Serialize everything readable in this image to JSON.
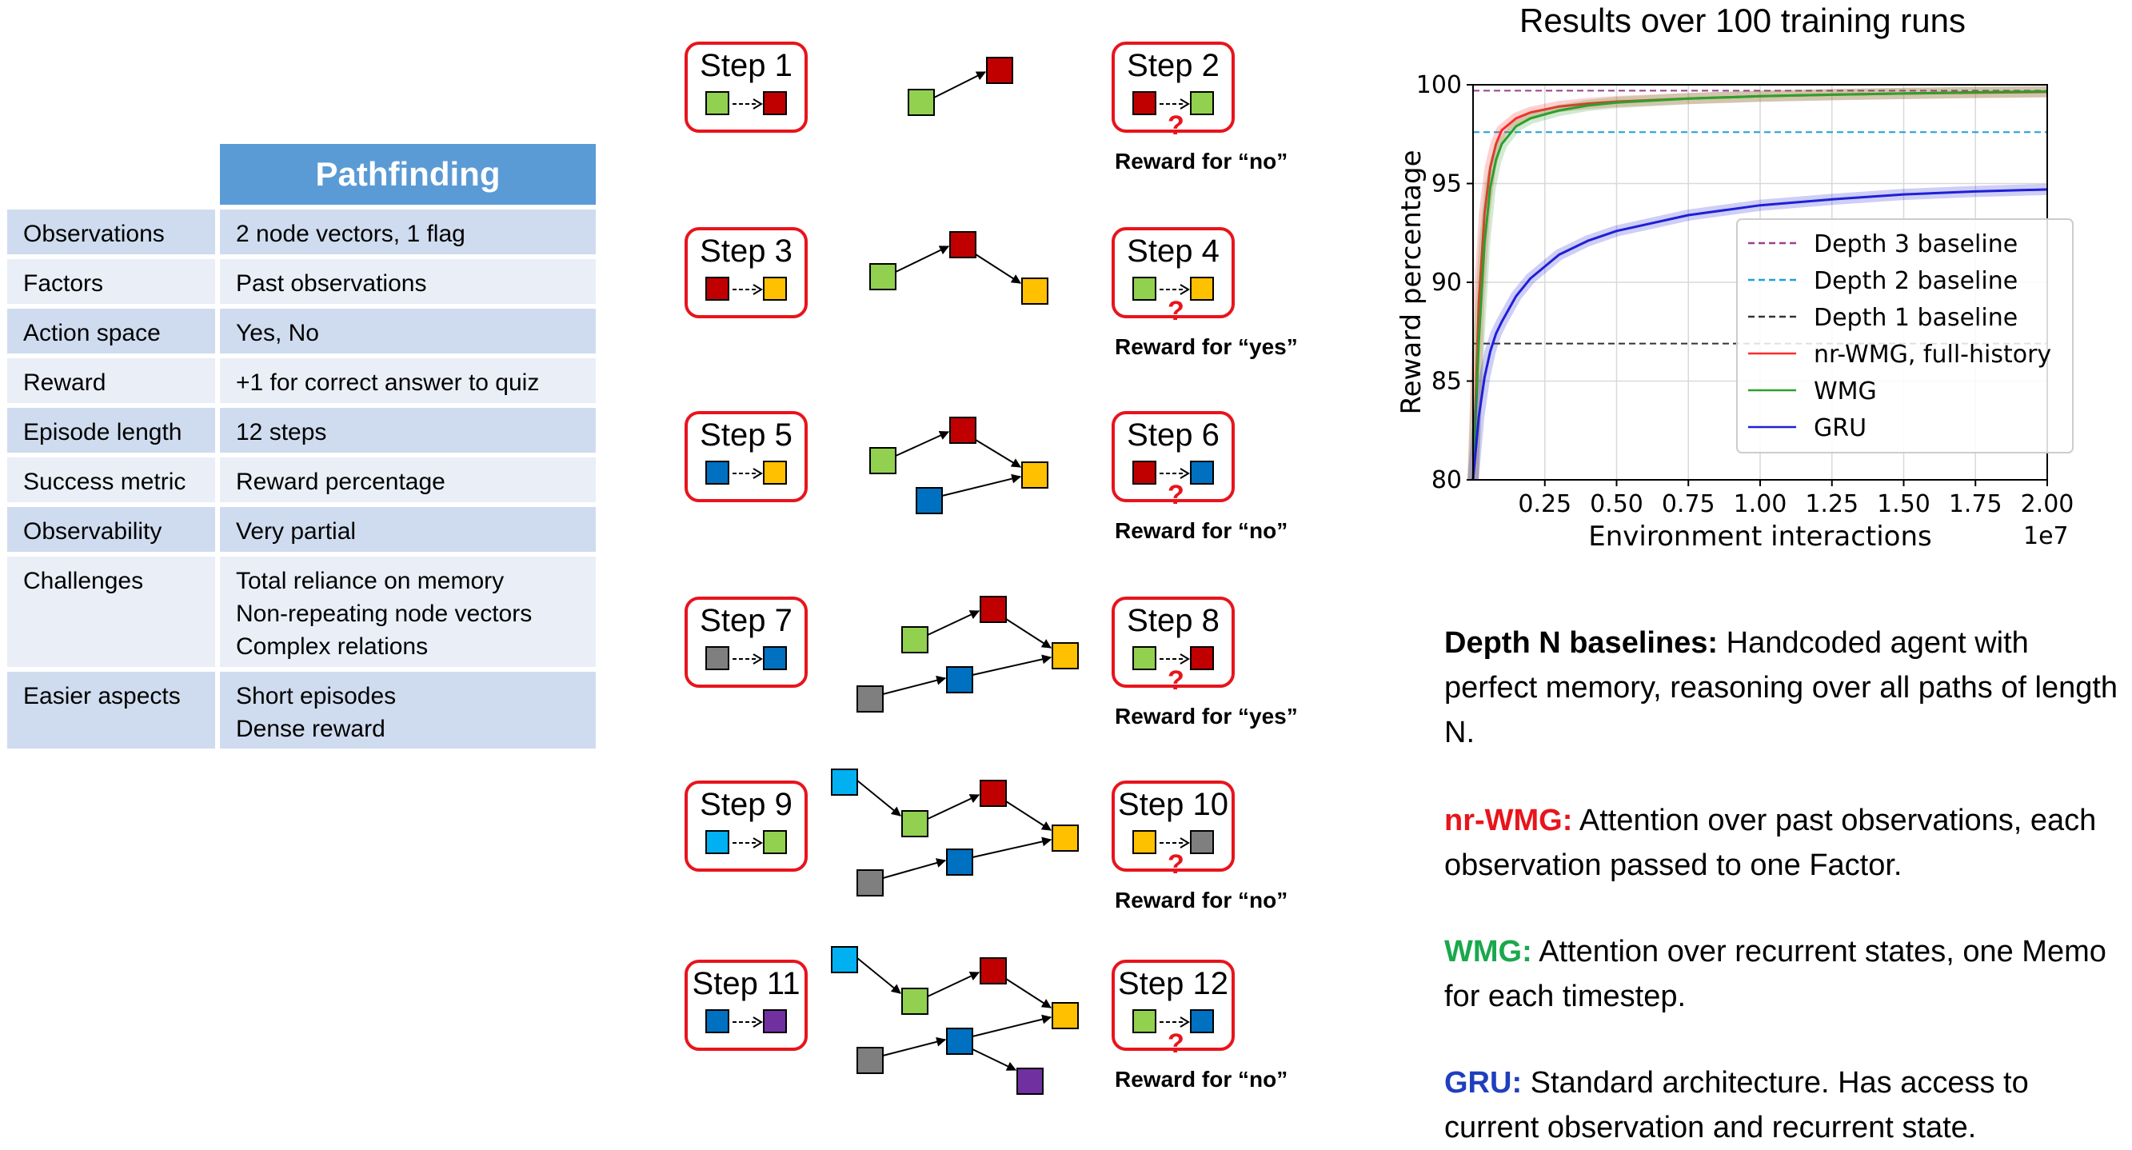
{
  "table": {
    "title": "Pathfinding",
    "rows": [
      {
        "key": "Observations",
        "value": "2 node vectors, 1 flag"
      },
      {
        "key": "Factors",
        "value": "Past observations"
      },
      {
        "key": "Action space",
        "value": "Yes, No"
      },
      {
        "key": "Reward",
        "value": "+1 for correct answer to quiz"
      },
      {
        "key": "Episode length",
        "value": "12 steps"
      },
      {
        "key": "Success metric",
        "value": "Reward percentage"
      },
      {
        "key": "Observability",
        "value": "Very partial"
      },
      {
        "key": "Challenges",
        "value": "Total reliance on memory\nNon-repeating node vectors\nComplex relations"
      },
      {
        "key": "Easier aspects",
        "value": "Short episodes\nDense reward"
      }
    ]
  },
  "colors": {
    "green": "#92d050",
    "red": "#c00000",
    "orange": "#ffc000",
    "blue": "#0070c0",
    "gray": "#7f7f7f",
    "cyan": "#00b0f0",
    "purple": "#7030a0",
    "step_border": "#e8141c"
  },
  "steps": [
    {
      "label": "Step 1",
      "from": "green",
      "to": "red"
    },
    {
      "label": "Step 2",
      "from": "red",
      "to": "green",
      "quiz": true,
      "reward": "Reward for “no”"
    },
    {
      "label": "Step 3",
      "from": "red",
      "to": "orange"
    },
    {
      "label": "Step 4",
      "from": "green",
      "to": "orange",
      "quiz": true,
      "reward": "Reward for “yes”"
    },
    {
      "label": "Step 5",
      "from": "blue",
      "to": "orange"
    },
    {
      "label": "Step 6",
      "from": "red",
      "to": "blue",
      "quiz": true,
      "reward": "Reward for “no”"
    },
    {
      "label": "Step 7",
      "from": "gray",
      "to": "blue"
    },
    {
      "label": "Step 8",
      "from": "green",
      "to": "red",
      "quiz": true,
      "reward": "Reward for “yes”"
    },
    {
      "label": "Step 9",
      "from": "cyan",
      "to": "green"
    },
    {
      "label": "Step 10",
      "from": "orange",
      "to": "gray",
      "quiz": true,
      "reward": "Reward for “no”"
    },
    {
      "label": "Step 11",
      "from": "blue",
      "to": "purple"
    },
    {
      "label": "Step 12",
      "from": "green",
      "to": "blue",
      "quiz": true,
      "reward": "Reward for “no”"
    }
  ],
  "chart_data": {
    "type": "line",
    "title": "Results over 100 training runs",
    "xlabel": "Environment interactions",
    "x_multiplier": "1e7",
    "ylabel": "Reward percentage",
    "xlim": [
      0,
      2.0
    ],
    "ylim": [
      80,
      100
    ],
    "xticks": [
      "0.25",
      "0.50",
      "0.75",
      "1.00",
      "1.25",
      "1.50",
      "1.75",
      "2.00"
    ],
    "yticks": [
      "80",
      "85",
      "90",
      "95",
      "100"
    ],
    "grid": true,
    "legend_position": "center-right",
    "baselines": [
      {
        "name": "Depth 3 baseline",
        "y": 99.7,
        "color": "#9c3f8e"
      },
      {
        "name": "Depth 2 baseline",
        "y": 97.6,
        "color": "#1f9fd6"
      },
      {
        "name": "Depth 1 baseline",
        "y": 86.9,
        "color": "#333333"
      }
    ],
    "series": [
      {
        "name": "nr-WMG, full-history",
        "color": "#ff2b2b",
        "x": [
          0.0,
          0.02,
          0.04,
          0.06,
          0.08,
          0.1,
          0.15,
          0.2,
          0.3,
          0.4,
          0.5,
          0.75,
          1.0,
          1.25,
          1.5,
          1.75,
          2.0
        ],
        "y": [
          80.0,
          89.0,
          93.5,
          95.8,
          97.0,
          97.7,
          98.3,
          98.6,
          98.9,
          99.05,
          99.15,
          99.3,
          99.42,
          99.5,
          99.56,
          99.6,
          99.64
        ]
      },
      {
        "name": "WMG",
        "color": "#2ca02c",
        "x": [
          0.0,
          0.02,
          0.04,
          0.06,
          0.08,
          0.1,
          0.15,
          0.2,
          0.3,
          0.4,
          0.5,
          0.75,
          1.0,
          1.25,
          1.5,
          1.75,
          2.0
        ],
        "y": [
          80.0,
          87.0,
          92.0,
          94.8,
          96.2,
          97.0,
          97.9,
          98.3,
          98.7,
          98.95,
          99.1,
          99.3,
          99.42,
          99.5,
          99.56,
          99.62,
          99.66
        ]
      },
      {
        "name": "GRU",
        "color": "#1f1fd6",
        "x": [
          0.0,
          0.02,
          0.04,
          0.06,
          0.08,
          0.1,
          0.15,
          0.2,
          0.3,
          0.4,
          0.5,
          0.75,
          1.0,
          1.25,
          1.5,
          1.75,
          2.0
        ],
        "y": [
          80.0,
          83.2,
          85.2,
          86.5,
          87.4,
          88.0,
          89.3,
          90.2,
          91.4,
          92.1,
          92.6,
          93.4,
          93.9,
          94.2,
          94.45,
          94.6,
          94.7
        ]
      }
    ]
  },
  "descriptions": [
    {
      "name": "Depth N baselines:",
      "color": "#000000",
      "text": "  Handcoded agent with perfect memory, reasoning over all paths of length N."
    },
    {
      "name": "nr-WMG:",
      "color": "#e8141c",
      "text": "  Attention over past observations, each observation passed to one Factor."
    },
    {
      "name": "WMG:",
      "color": "#1aa84c",
      "text": "  Attention over recurrent states, one Memo for each timestep."
    },
    {
      "name": "GRU:",
      "color": "#1f3fbf",
      "text": "  Standard architecture. Has access to current observation and recurrent state."
    }
  ]
}
